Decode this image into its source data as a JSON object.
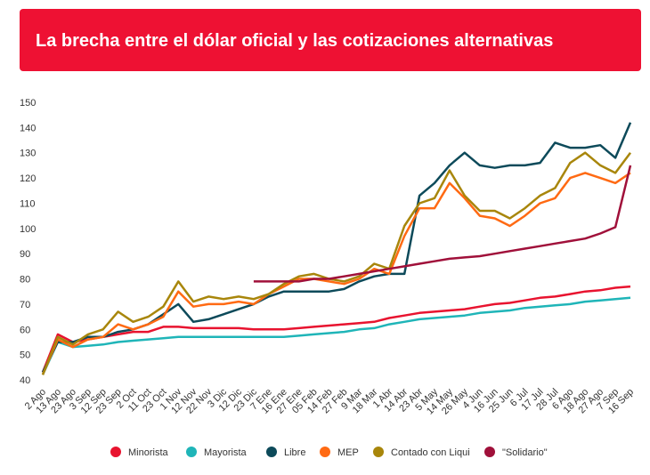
{
  "chart_data": {
    "type": "line",
    "title": "La brecha entre el dólar oficial y las cotizaciones alternativas",
    "categories": [
      "2 Ago",
      "13 Ago",
      "23 Ago",
      "3 Sep",
      "12 Sep",
      "23 Sep",
      "2 Oct",
      "11 Oct",
      "23 Oct",
      "1 Nov",
      "12 Nov",
      "22 Nov",
      "3 Dic",
      "12 Dic",
      "23 Dic",
      "7 Ene",
      "16 Ene",
      "27 Ene",
      "05 Feb",
      "14 Feb",
      "27 Feb",
      "9 Mar",
      "18 Mar",
      "1 Abr",
      "14 Abr",
      "23 Abr",
      "5 May",
      "14 May",
      "26 May",
      "4 Jun",
      "16 Jun",
      "25 Jun",
      "6 Jul",
      "17 Jul",
      "28 Jul",
      "6 Ago",
      "18 Ago",
      "27 Ago",
      "7 Sep",
      "16 Sep"
    ],
    "series": [
      {
        "name": "Minorista",
        "color": "#e8132f",
        "values": [
          43,
          58,
          55,
          56,
          57,
          58,
          59,
          59,
          61,
          61,
          60.5,
          60.5,
          60.5,
          60.5,
          60,
          60,
          60,
          60.5,
          61,
          61.5,
          62,
          62.5,
          63,
          64.5,
          65.5,
          66.5,
          67,
          67.5,
          68,
          69,
          70,
          70.5,
          71.5,
          72.5,
          73,
          74,
          75,
          75.5,
          76.5,
          77
        ]
      },
      {
        "name": "Mayorista",
        "color": "#1fb5b8",
        "values": [
          42,
          55,
          53,
          53.5,
          54,
          55,
          55.5,
          56,
          56.5,
          57,
          57,
          57,
          57,
          57,
          57,
          57,
          57,
          57.5,
          58,
          58.5,
          59,
          60,
          60.5,
          62,
          63,
          64,
          64.5,
          65,
          65.5,
          66.5,
          67,
          67.5,
          68.5,
          69,
          69.5,
          70,
          71,
          71.5,
          72,
          72.5
        ]
      },
      {
        "name": "Libre",
        "color": "#0d4a5a",
        "values": [
          43,
          55,
          55,
          57,
          57,
          59,
          60,
          62,
          66,
          70,
          63,
          64,
          66,
          68,
          70,
          73,
          75,
          75,
          75,
          75,
          76,
          79,
          81,
          82,
          82,
          113,
          118,
          125,
          130,
          125,
          124,
          125,
          125,
          126,
          134,
          132,
          132,
          133,
          128,
          142
        ]
      },
      {
        "name": "MEP",
        "color": "#ff6a13",
        "values": [
          42,
          56,
          53,
          56,
          57,
          62,
          60,
          62,
          65,
          75,
          69,
          70,
          70,
          71,
          70,
          74,
          77,
          80,
          80,
          79,
          78,
          80,
          84,
          82,
          97,
          108,
          108,
          118,
          112,
          105,
          104,
          101,
          105,
          110,
          112,
          120,
          122,
          120,
          118,
          122
        ]
      },
      {
        "name": "Contado con Liqui",
        "color": "#a8860b",
        "values": [
          42,
          57,
          54,
          58,
          60,
          67,
          63,
          65,
          69,
          79,
          71,
          73,
          72,
          73,
          72,
          74,
          78,
          81,
          82,
          80,
          79,
          81,
          86,
          84,
          101,
          110,
          112,
          123,
          113,
          107,
          107,
          104,
          108,
          113,
          116,
          126,
          130,
          125,
          122,
          130
        ]
      },
      {
        "name": "\"Solidario\"",
        "color": "#a0103a",
        "values": [
          null,
          null,
          null,
          null,
          null,
          null,
          null,
          null,
          null,
          null,
          null,
          null,
          null,
          null,
          79,
          79,
          79,
          79,
          80,
          80,
          81,
          82,
          83,
          84,
          85,
          86,
          87,
          88,
          88.5,
          89,
          90,
          91,
          92,
          93,
          94,
          95,
          96,
          98,
          100.5,
          125
        ]
      }
    ],
    "ylim": [
      40,
      150
    ],
    "yticks": [
      40,
      50,
      60,
      70,
      80,
      90,
      100,
      110,
      120,
      130,
      140,
      150
    ],
    "grid": false,
    "legend": "bottom"
  }
}
